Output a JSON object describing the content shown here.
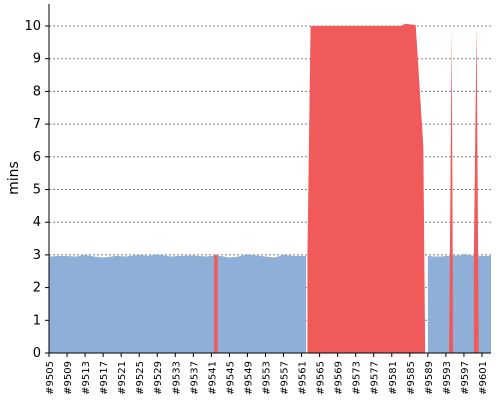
{
  "chart_data": {
    "type": "area",
    "title": "",
    "ylabel": "mins",
    "xlabel": "",
    "ylim": [
      0,
      10
    ],
    "grid": true,
    "colors": {
      "normal": "#8eb0d8",
      "failed": "#f15a5a"
    },
    "x_start": 9505,
    "x_end": 9603,
    "x_ticks": [
      "#9505",
      "#9509",
      "#9513",
      "#9517",
      "#9521",
      "#9525",
      "#9529",
      "#9533",
      "#9537",
      "#9541",
      "#9545",
      "#9549",
      "#9553",
      "#9557",
      "#9561",
      "#9565",
      "#9569",
      "#9573",
      "#9577",
      "#9581",
      "#9585",
      "#9589",
      "#9593",
      "#9597",
      "#9601"
    ],
    "y_ticks": [
      "0",
      "1",
      "2",
      "3",
      "4",
      "5",
      "6",
      "7",
      "8",
      "9",
      "10"
    ],
    "series": [
      {
        "status": "normal",
        "points": [
          [
            9505,
            2.95
          ],
          [
            9508,
            2.97
          ],
          [
            9511,
            2.95
          ],
          [
            9513,
            3.0
          ],
          [
            9515,
            2.95
          ],
          [
            9517,
            2.92
          ],
          [
            9520,
            2.97
          ],
          [
            9522,
            2.95
          ],
          [
            9525,
            3.0
          ],
          [
            9527,
            2.97
          ],
          [
            9529,
            3.02
          ],
          [
            9532,
            2.95
          ],
          [
            9534,
            2.97
          ],
          [
            9537,
            2.98
          ],
          [
            9540,
            2.95
          ],
          [
            9541,
            2.97
          ],
          [
            9543,
            2.97
          ],
          [
            9545,
            2.92
          ],
          [
            9547,
            2.95
          ],
          [
            9549,
            3.02
          ],
          [
            9551,
            2.98
          ],
          [
            9553,
            2.95
          ],
          [
            9555,
            2.92
          ],
          [
            9557,
            3.0
          ],
          [
            9559,
            2.97
          ],
          [
            9561,
            2.97
          ],
          [
            9562,
            2.97
          ],
          [
            9589,
            2.98
          ],
          [
            9590,
            2.95
          ],
          [
            9592,
            2.95
          ],
          [
            9593,
            2.97
          ],
          [
            9596,
            2.98
          ],
          [
            9597,
            3.03
          ],
          [
            9598,
            3.0
          ],
          [
            9600,
            2.95
          ],
          [
            9601,
            2.97
          ],
          [
            9603,
            2.97
          ]
        ]
      },
      {
        "status": "failed",
        "points": [
          [
            9542,
            3.0
          ],
          [
            9563,
            10.0
          ],
          [
            9574,
            10.0
          ],
          [
            9584,
            10.07
          ],
          [
            9586,
            10.03
          ],
          [
            9588,
            6.3
          ],
          [
            9594,
            9.9
          ],
          [
            9597,
            3.05
          ],
          [
            9600,
            10.0
          ]
        ]
      }
    ]
  }
}
